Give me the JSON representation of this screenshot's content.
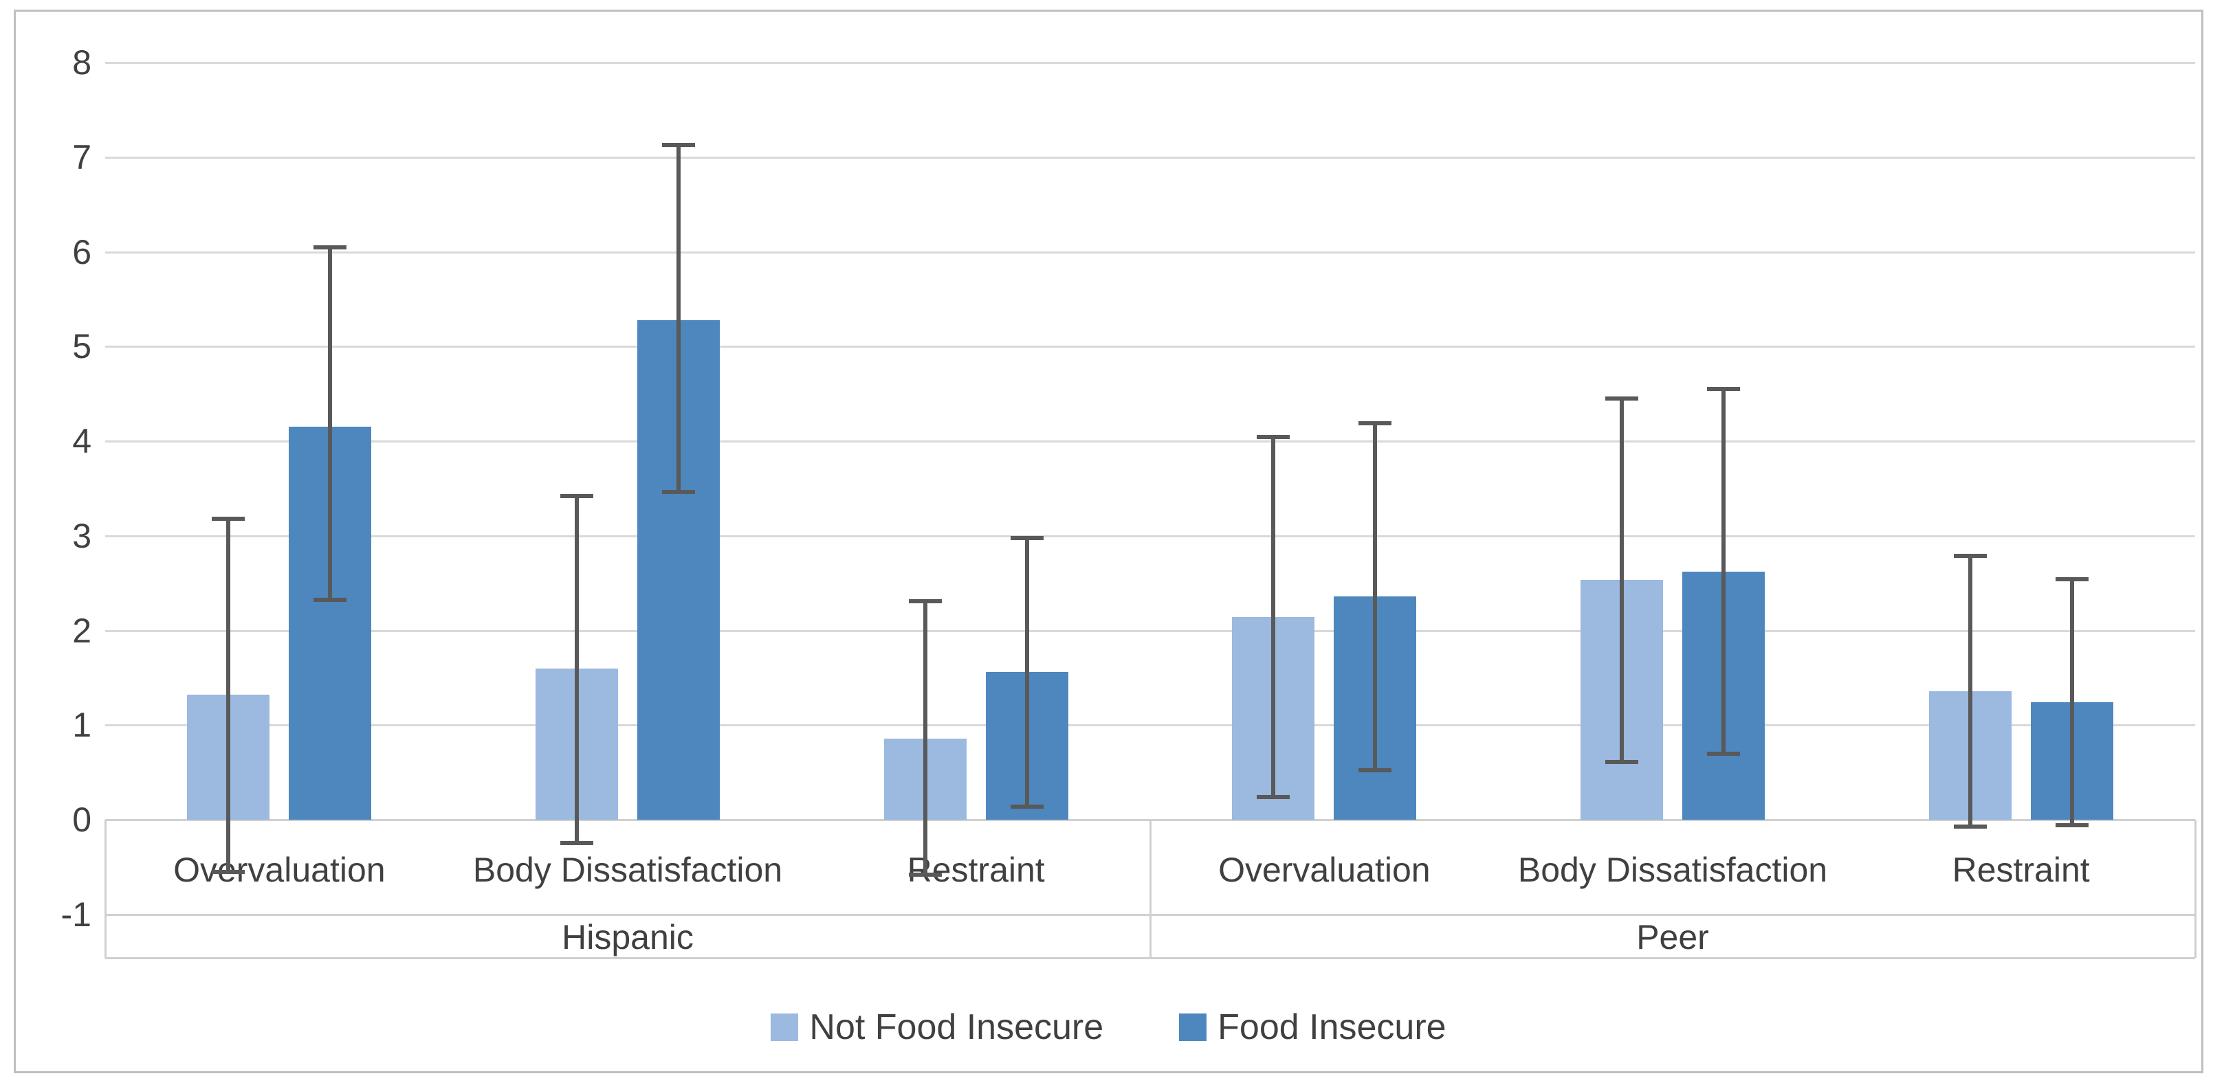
{
  "chart_data": {
    "type": "bar",
    "title": "",
    "xlabel": "",
    "ylabel": "",
    "grid": true,
    "legend_position": "bottom",
    "y_axis": {
      "min": -1,
      "max": 8,
      "tick_step": 1,
      "ticks": [
        8,
        7,
        6,
        5,
        4,
        3,
        2,
        1,
        0,
        -1
      ]
    },
    "groups": [
      {
        "label": "Hispanic",
        "categories": [
          "Overvaluation",
          "Body Dissatisfaction",
          "Restraint"
        ]
      },
      {
        "label": "Peer",
        "categories": [
          "Overvaluation",
          "Body Dissatisfaction",
          "Restraint"
        ]
      }
    ],
    "series": [
      {
        "name": "Not Food Insecure",
        "color": "#9cb9df",
        "values": [
          1.32,
          1.6,
          0.86,
          2.14,
          2.53,
          1.36
        ],
        "error_low": [
          -0.55,
          -0.25,
          -0.58,
          0.24,
          0.61,
          -0.07
        ],
        "error_high": [
          3.18,
          3.42,
          2.31,
          4.04,
          4.45,
          2.79
        ]
      },
      {
        "name": "Food Insecure",
        "color": "#4e86be",
        "values": [
          4.15,
          5.28,
          1.56,
          2.36,
          2.62,
          1.24
        ],
        "error_low": [
          2.32,
          3.46,
          0.14,
          0.52,
          0.7,
          -0.06
        ],
        "error_high": [
          6.05,
          7.13,
          2.98,
          4.19,
          4.55,
          2.54
        ]
      }
    ],
    "colors": {
      "gridline": "#d9d9d9",
      "axis_line": "#d0d0d0",
      "error_bar": "#595959",
      "text": "#404040",
      "frame_border": "#bfbfbf"
    }
  }
}
